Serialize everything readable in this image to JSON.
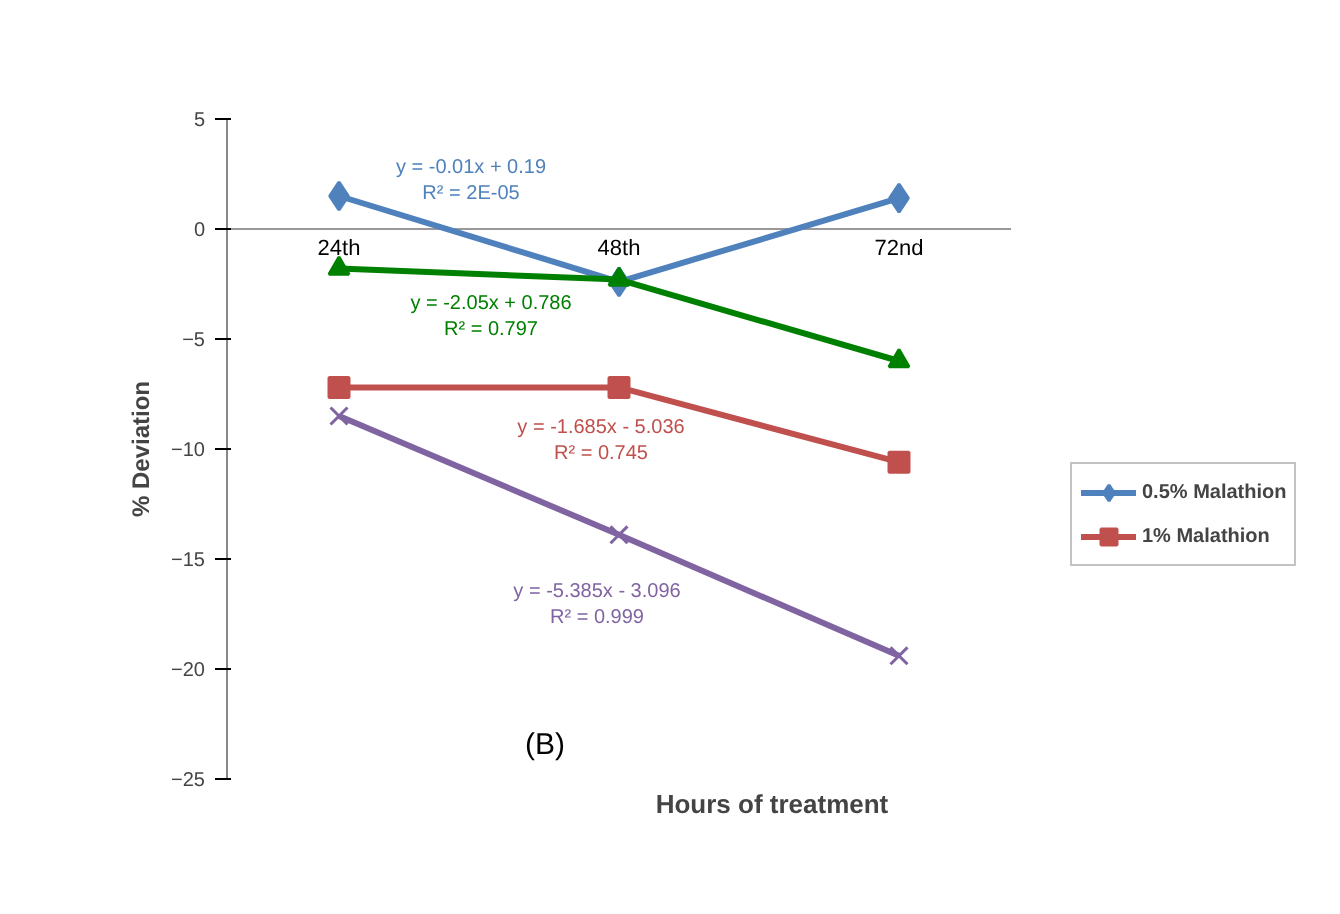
{
  "chart_data": {
    "type": "line",
    "xlabel": "Hours of treatment",
    "ylabel": "% Deviation",
    "categories": [
      "24th",
      "48th",
      "72nd"
    ],
    "ylim": [
      -25,
      5
    ],
    "yticks": [
      -25,
      -20,
      -15,
      -10,
      -5,
      0,
      5
    ],
    "grid": false,
    "legend": "right",
    "series": [
      {
        "name": "0.5% Malathion",
        "color": "#4f81bd",
        "marker": "diamond",
        "values": [
          1.5,
          -2.4,
          1.4
        ]
      },
      {
        "color": "#008000",
        "marker": "triangle",
        "values": [
          -1.8,
          -2.3,
          -6.0
        ]
      },
      {
        "name": "1% Malathion",
        "color": "#c0504d",
        "marker": "square",
        "values": [
          -7.2,
          -7.2,
          -10.6
        ]
      },
      {
        "color": "#8064a2",
        "marker": "x",
        "values": [
          -8.5,
          -13.9,
          -19.4
        ]
      }
    ],
    "annotations": [
      {
        "text": "y = -0.01x + 0.19\nR² = 2E-05"
      },
      {
        "text": "y = -2.05x + 0.786\nR² = 0.797"
      },
      {
        "text": "y = -1.685x - 5.036\nR² = 0.745"
      },
      {
        "text": "y = -5.385x - 3.096\nR² = 0.999"
      },
      {
        "text": "(B)"
      }
    ]
  }
}
